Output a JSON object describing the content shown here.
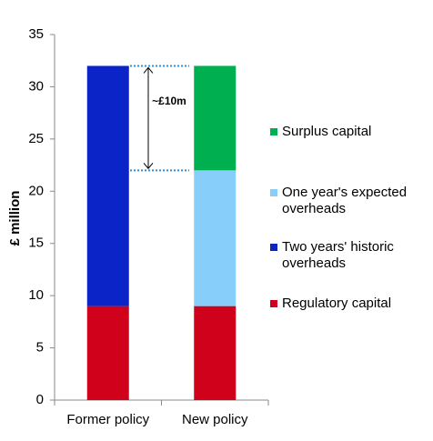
{
  "chart_data": {
    "type": "stacked_bar",
    "y_label": "£ million",
    "categories": [
      "Former policy",
      "New policy"
    ],
    "series": [
      {
        "name": "Regulatory capital",
        "color": "#d0021b",
        "values": [
          9,
          9
        ]
      },
      {
        "name": "Two years' historic overheads",
        "color": "#0a24c8",
        "values": [
          23,
          null
        ]
      },
      {
        "name": "One year's expected overheads",
        "color": "#87cefa",
        "values": [
          null,
          13
        ]
      },
      {
        "name": "Surplus capital",
        "color": "#00b050",
        "values": [
          null,
          10
        ]
      }
    ],
    "annotation": "~£10m",
    "ylim": [
      0,
      35
    ],
    "yticks": [
      0,
      5,
      10,
      15,
      20,
      25,
      30,
      35
    ],
    "grid": false
  }
}
